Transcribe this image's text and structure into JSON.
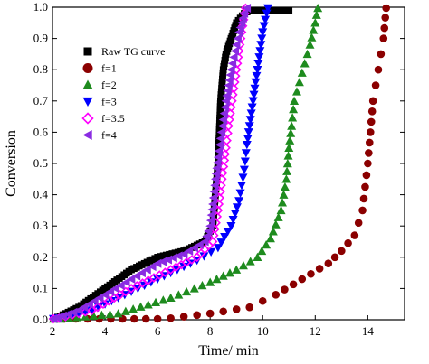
{
  "chart_data": {
    "type": "scatter",
    "xlabel": "Time/ min",
    "ylabel": "Conversion",
    "xlim": [
      2,
      15.4
    ],
    "ylim": [
      0,
      1.0
    ],
    "xticks": [
      "2",
      "4",
      "6",
      "8",
      "10",
      "12",
      "14"
    ],
    "yticks": [
      "0.0",
      "0.1",
      "0.2",
      "0.3",
      "0.4",
      "0.5",
      "0.6",
      "0.7",
      "0.8",
      "0.9",
      "1.0"
    ],
    "legend_position": "top-left",
    "series": [
      {
        "name": "Raw TG curve",
        "marker": "square",
        "color": "#000000",
        "x": [
          2.0,
          3.0,
          4.0,
          5.0,
          6.0,
          7.0,
          7.8,
          8.1,
          8.2,
          8.3,
          8.35,
          8.4,
          8.45,
          8.5,
          8.6,
          8.8,
          9.0,
          9.3,
          9.5,
          9.8,
          10.2,
          10.8,
          11.0
        ],
        "y": [
          0.0,
          0.04,
          0.1,
          0.16,
          0.2,
          0.22,
          0.25,
          0.3,
          0.4,
          0.5,
          0.6,
          0.7,
          0.75,
          0.8,
          0.85,
          0.9,
          0.95,
          0.98,
          0.99,
          0.99,
          0.99,
          0.99,
          0.99
        ]
      },
      {
        "name": "f=1",
        "marker": "circle",
        "color": "#8B0000",
        "x": [
          2.0,
          6.0,
          8.0,
          9.5,
          10.5,
          11.5,
          12.5,
          13.0,
          13.5,
          13.8,
          14.0,
          14.1,
          14.2,
          14.3,
          14.4,
          14.5,
          14.6,
          14.7
        ],
        "y": [
          0.0,
          0.0,
          0.02,
          0.04,
          0.08,
          0.13,
          0.18,
          0.22,
          0.27,
          0.35,
          0.5,
          0.6,
          0.7,
          0.75,
          0.8,
          0.85,
          0.9,
          1.0
        ]
      },
      {
        "name": "f=2",
        "marker": "triangle-up",
        "color": "#1E8B1E",
        "x": [
          2.0,
          4.5,
          6.5,
          8.0,
          9.0,
          9.8,
          10.3,
          10.7,
          10.9,
          11.0,
          11.1,
          11.2,
          11.4,
          11.6,
          11.8,
          12.0,
          12.1
        ],
        "y": [
          0.0,
          0.02,
          0.07,
          0.12,
          0.16,
          0.2,
          0.26,
          0.35,
          0.45,
          0.55,
          0.62,
          0.7,
          0.76,
          0.82,
          0.88,
          0.95,
          1.0
        ]
      },
      {
        "name": "f=3",
        "marker": "triangle-down",
        "color": "#0000FF",
        "x": [
          2.0,
          3.5,
          5.0,
          6.5,
          7.5,
          8.3,
          8.8,
          9.1,
          9.3,
          9.4,
          9.5,
          9.6,
          9.7,
          9.8,
          9.9,
          10.0,
          10.2
        ],
        "y": [
          0.0,
          0.03,
          0.09,
          0.15,
          0.19,
          0.23,
          0.3,
          0.38,
          0.48,
          0.56,
          0.62,
          0.68,
          0.74,
          0.8,
          0.86,
          0.92,
          1.0
        ]
      },
      {
        "name": "f=3.5",
        "marker": "diamond-open",
        "color": "#FF00FF",
        "x": [
          2.0,
          3.5,
          5.0,
          6.5,
          7.5,
          8.1,
          8.3,
          8.45,
          8.6,
          8.7,
          8.8,
          8.9,
          9.0,
          9.1,
          9.2,
          9.35
        ],
        "y": [
          0.0,
          0.03,
          0.1,
          0.16,
          0.2,
          0.25,
          0.35,
          0.45,
          0.55,
          0.62,
          0.68,
          0.74,
          0.8,
          0.86,
          0.92,
          1.0
        ]
      },
      {
        "name": "f=4",
        "marker": "triangle-left",
        "color": "#8A2BE2",
        "x": [
          2.0,
          3.0,
          4.0,
          5.0,
          6.0,
          7.0,
          7.8,
          8.0,
          8.1,
          8.2,
          8.3,
          8.4,
          8.5,
          8.6,
          8.7,
          8.8,
          8.9,
          9.0,
          9.1,
          9.2,
          9.3,
          9.4
        ],
        "y": [
          0.0,
          0.03,
          0.08,
          0.13,
          0.18,
          0.21,
          0.25,
          0.3,
          0.37,
          0.45,
          0.52,
          0.58,
          0.64,
          0.7,
          0.75,
          0.8,
          0.84,
          0.88,
          0.92,
          0.95,
          0.98,
          1.0
        ]
      }
    ]
  }
}
